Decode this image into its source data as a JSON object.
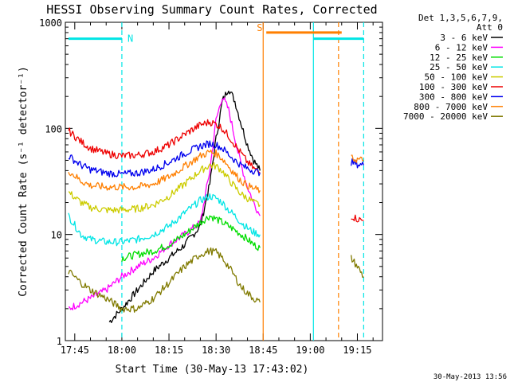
{
  "chart_data": {
    "type": "line",
    "title": "HESSI Observing Summary Count Rates, Corrected",
    "xlabel": "Start Time (30-May-13 17:43:02)",
    "ylabel": "Corrected Count Rate (s⁻¹ detector⁻¹)",
    "yscale": "log",
    "ylim": [
      1,
      1000
    ],
    "xlim_minutes": [
      "17:42",
      "19:23"
    ],
    "x_ticks": [
      "17:45",
      "18:00",
      "18:15",
      "18:30",
      "18:45",
      "19:00",
      "19:15"
    ],
    "y_ticks": [
      "1",
      "10",
      "100",
      "1000"
    ],
    "legend_header": [
      "Det 1,3,5,6,7,9,",
      "Att 0"
    ],
    "legend_position": "right",
    "footer": "30-May-2013 13:56",
    "flag_bars": [
      {
        "label": "N",
        "color": "#00e5e5",
        "segments": [
          [
            "17:43",
            "18:00"
          ],
          [
            "19:01",
            "19:17"
          ]
        ],
        "level": 700
      },
      {
        "label": "S",
        "color": "#ff7f00",
        "segments": [
          [
            "18:46",
            "19:10"
          ]
        ],
        "level": 800
      }
    ],
    "vertical_markers": [
      {
        "time": "18:00",
        "color": "#00e5e5",
        "style": "dashed"
      },
      {
        "time": "18:45",
        "color": "#ff7f00",
        "style": "solid"
      },
      {
        "time": "19:01",
        "color": "#00e5e5",
        "style": "solid"
      },
      {
        "time": "19:09",
        "color": "#ff7f00",
        "style": "dashed"
      },
      {
        "time": "19:17",
        "color": "#00e5e5",
        "style": "dashed"
      }
    ],
    "data_gap": [
      "18:45",
      "19:13"
    ],
    "series": [
      {
        "name": "3 - 6 keV",
        "color": "#000000",
        "x": [
          "17:56",
          "18:00",
          "18:05",
          "18:10",
          "18:15",
          "18:20",
          "18:25",
          "18:28",
          "18:30",
          "18:32",
          "18:34",
          "18:36",
          "18:38",
          "18:40",
          "18:42",
          "18:44"
        ],
        "values": [
          1.5,
          2,
          3,
          4.5,
          6,
          8,
          12,
          30,
          80,
          180,
          240,
          180,
          110,
          70,
          50,
          40
        ]
      },
      {
        "name": "6 - 12 keV",
        "color": "#ff00ff",
        "x": [
          "17:43",
          "17:50",
          "17:55",
          "18:00",
          "18:05",
          "18:10",
          "18:15",
          "18:20",
          "18:25",
          "18:28",
          "18:30",
          "18:32",
          "18:34",
          "18:36",
          "18:38",
          "18:40",
          "18:42",
          "18:44"
        ],
        "values": [
          2,
          2.5,
          3,
          4,
          5,
          6,
          8,
          10,
          13,
          40,
          120,
          200,
          150,
          80,
          45,
          28,
          20,
          15
        ]
      },
      {
        "name": "12 - 25 keV",
        "color": "#00dd00",
        "x": [
          "18:00",
          "18:05",
          "18:10",
          "18:15",
          "18:20",
          "18:25",
          "18:28",
          "18:30",
          "18:32",
          "18:34",
          "18:36",
          "18:38",
          "18:40",
          "18:42",
          "18:44"
        ],
        "values": [
          6,
          6.5,
          7,
          8,
          10,
          13,
          15,
          14,
          13,
          12,
          11,
          10,
          9,
          8,
          7.5
        ]
      },
      {
        "name": "25 - 50 keV",
        "color": "#00e5e5",
        "x": [
          "17:43",
          "17:47",
          "17:50",
          "17:55",
          "18:00",
          "18:05",
          "18:10",
          "18:15",
          "18:20",
          "18:25",
          "18:28",
          "18:30",
          "18:32",
          "18:34",
          "18:36",
          "18:38",
          "18:40",
          "18:42",
          "18:44"
        ],
        "values": [
          15,
          10,
          9,
          8.5,
          8.5,
          9,
          10,
          12,
          16,
          21,
          23,
          22,
          20,
          17,
          15,
          13,
          11.5,
          10.5,
          10
        ]
      },
      {
        "name": "50 - 100 keV",
        "color": "#cccc00",
        "x": [
          "17:43",
          "17:47",
          "17:50",
          "17:55",
          "18:00",
          "18:05",
          "18:10",
          "18:15",
          "18:20",
          "18:25",
          "18:28",
          "18:30",
          "18:32",
          "18:34",
          "18:36",
          "18:38",
          "18:40",
          "18:42",
          "18:44"
        ],
        "values": [
          25,
          20,
          18,
          17,
          17,
          17.5,
          19,
          23,
          30,
          40,
          45,
          44,
          40,
          33,
          28,
          24,
          22,
          20,
          19
        ]
      },
      {
        "name": "100 - 300 keV",
        "color": "#ee0000",
        "x": [
          "17:43",
          "17:47",
          "17:50",
          "17:55",
          "18:00",
          "18:05",
          "18:10",
          "18:15",
          "18:20",
          "18:25",
          "18:28",
          "18:30",
          "18:32",
          "18:34",
          "18:36",
          "18:38",
          "18:40",
          "18:42",
          "18:44",
          "19:13",
          "19:15",
          "19:17"
        ],
        "values": [
          95,
          75,
          65,
          58,
          55,
          56,
          60,
          70,
          88,
          108,
          115,
          110,
          100,
          85,
          70,
          58,
          48,
          42,
          38,
          15,
          14,
          13.5
        ]
      },
      {
        "name": "300 - 800 keV",
        "color": "#0000ee",
        "x": [
          "17:43",
          "17:47",
          "17:50",
          "17:55",
          "18:00",
          "18:05",
          "18:10",
          "18:15",
          "18:20",
          "18:25",
          "18:28",
          "18:30",
          "18:32",
          "18:34",
          "18:36",
          "18:38",
          "18:40",
          "18:42",
          "18:44",
          "19:13",
          "19:15",
          "19:17"
        ],
        "values": [
          55,
          45,
          41,
          38,
          37,
          38,
          41,
          48,
          58,
          68,
          72,
          70,
          65,
          57,
          50,
          45,
          42,
          40,
          38,
          48,
          46,
          45
        ]
      },
      {
        "name": "800 - 7000 keV",
        "color": "#ff7f00",
        "x": [
          "17:43",
          "17:47",
          "17:50",
          "17:55",
          "18:00",
          "18:05",
          "18:10",
          "18:15",
          "18:20",
          "18:25",
          "18:28",
          "18:30",
          "18:32",
          "18:34",
          "18:36",
          "18:38",
          "18:40",
          "18:42",
          "18:44",
          "19:13",
          "19:15",
          "19:17"
        ],
        "values": [
          40,
          32,
          29,
          28,
          28,
          28,
          30,
          35,
          44,
          55,
          60,
          58,
          52,
          44,
          37,
          32,
          29,
          27,
          26,
          52,
          51,
          50
        ]
      },
      {
        "name": "7000 - 20000 keV",
        "color": "#807a00",
        "x": [
          "17:43",
          "17:47",
          "17:50",
          "17:55",
          "18:00",
          "18:05",
          "18:10",
          "18:15",
          "18:20",
          "18:25",
          "18:28",
          "18:30",
          "18:32",
          "18:34",
          "18:36",
          "18:38",
          "18:40",
          "18:42",
          "18:44",
          "19:13",
          "19:15",
          "19:17"
        ],
        "values": [
          4.5,
          3.5,
          3,
          2.5,
          2,
          2,
          2.5,
          3.5,
          5,
          6.5,
          7,
          6.8,
          6,
          5,
          4,
          3.2,
          2.8,
          2.5,
          2.3,
          6,
          5,
          4
        ]
      }
    ]
  }
}
